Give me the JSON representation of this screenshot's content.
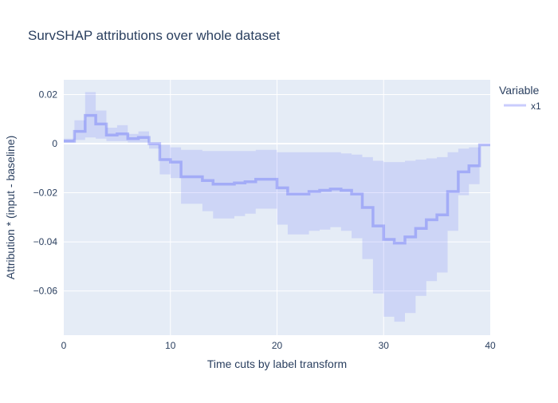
{
  "chart_data": {
    "type": "line",
    "title": "SurvSHAP attributions over whole dataset",
    "xlabel": "Time cuts by label transform",
    "ylabel": "Attribution * (input - baseline)",
    "xlim": [
      0,
      40
    ],
    "ylim": [
      -0.078,
      0.026
    ],
    "x_ticks": [
      0,
      10,
      20,
      30,
      40
    ],
    "x_tick_labels": [
      "0",
      "10",
      "20",
      "30",
      "40"
    ],
    "y_ticks": [
      0.02,
      0,
      -0.02,
      -0.04,
      -0.06
    ],
    "y_tick_labels": [
      "0.02",
      "0",
      "−0.02",
      "−0.04",
      "−0.06"
    ],
    "legend": {
      "title": "Variable",
      "placement": "top-right",
      "entries": [
        "x1"
      ]
    },
    "line_shape": "step-hv",
    "series": [
      {
        "name": "x1",
        "color": "#636efa",
        "x": [
          0,
          1,
          2,
          3,
          4,
          5,
          6,
          7,
          8,
          9,
          10,
          11,
          12,
          13,
          14,
          15,
          16,
          17,
          18,
          19,
          20,
          21,
          22,
          23,
          24,
          25,
          26,
          27,
          28,
          29,
          30,
          31,
          32,
          33,
          34,
          35,
          36,
          37,
          38,
          39,
          40
        ],
        "values": [
          0.001,
          0.005,
          0.0115,
          0.008,
          0.0035,
          0.004,
          0.002,
          0.0025,
          0.0,
          -0.0065,
          -0.0075,
          -0.0135,
          -0.0135,
          -0.015,
          -0.0165,
          -0.0165,
          -0.016,
          -0.0155,
          -0.0145,
          -0.0145,
          -0.018,
          -0.0205,
          -0.0205,
          -0.0195,
          -0.019,
          -0.0185,
          -0.019,
          -0.0205,
          -0.026,
          -0.0335,
          -0.039,
          -0.0405,
          -0.038,
          -0.0345,
          -0.031,
          -0.029,
          -0.0195,
          -0.0115,
          -0.009,
          -0.0005,
          -0.0005
        ],
        "upper": [
          0.002,
          0.0095,
          0.021,
          0.0135,
          0.0065,
          0.0075,
          0.004,
          0.005,
          0.0,
          -0.0005,
          -0.0015,
          -0.0025,
          -0.0025,
          -0.003,
          -0.003,
          -0.003,
          -0.003,
          -0.003,
          -0.0025,
          -0.0025,
          -0.0035,
          -0.0035,
          -0.0035,
          -0.0035,
          -0.0035,
          -0.0035,
          -0.004,
          -0.0045,
          -0.0055,
          -0.007,
          -0.0075,
          -0.0075,
          -0.007,
          -0.0065,
          -0.006,
          -0.0055,
          -0.0035,
          -0.002,
          -0.0015,
          -0.0005,
          -0.0005
        ],
        "lower": [
          0.0005,
          0.0015,
          0.0025,
          0.002,
          0.001,
          0.001,
          0.0005,
          0.0005,
          -0.002,
          -0.0125,
          -0.014,
          -0.0245,
          -0.0245,
          -0.0275,
          -0.0305,
          -0.0305,
          -0.0295,
          -0.0285,
          -0.0265,
          -0.0265,
          -0.033,
          -0.037,
          -0.037,
          -0.0355,
          -0.035,
          -0.034,
          -0.0355,
          -0.0385,
          -0.047,
          -0.061,
          -0.0705,
          -0.0725,
          -0.069,
          -0.062,
          -0.056,
          -0.0525,
          -0.0355,
          -0.021,
          -0.0165,
          -0.0005,
          -0.0005
        ]
      }
    ]
  }
}
